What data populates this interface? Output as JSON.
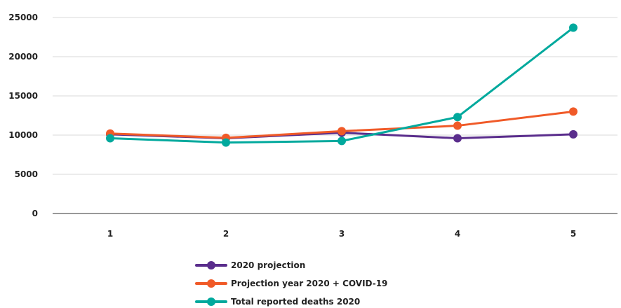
{
  "chart_data": {
    "type": "line",
    "title": "",
    "xlabel": "",
    "ylabel": "",
    "categories": [
      "1",
      "2",
      "3",
      "4",
      "5"
    ],
    "ylim": [
      0,
      25000
    ],
    "yticks": [
      0,
      5000,
      10000,
      15000,
      20000,
      25000
    ],
    "grid": true,
    "legend_position": "bottom",
    "series": [
      {
        "name": "2020 projection",
        "color": "#5a2d8c",
        "values": [
          10100,
          9600,
          10300,
          9600,
          10100
        ]
      },
      {
        "name": "Projection year 2020 + COVID-19",
        "color": "#f05a28",
        "values": [
          10200,
          9650,
          10500,
          11200,
          13000
        ]
      },
      {
        "name": "Total reported deaths 2020",
        "color": "#00a99d",
        "values": [
          9600,
          9050,
          9250,
          12300,
          23700
        ]
      }
    ]
  }
}
